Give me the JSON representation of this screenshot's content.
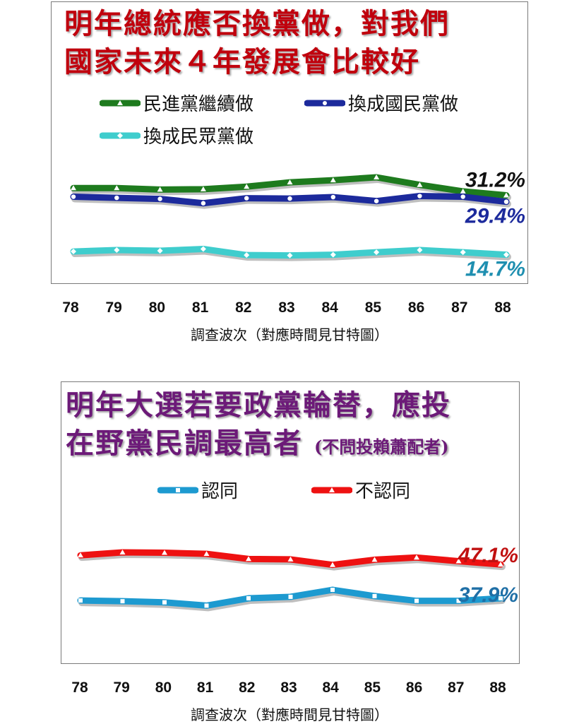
{
  "chart_data": [
    {
      "type": "line",
      "title_line1": "明年總統應否換黨做，對我們",
      "title_line2": "國家未來４年發展會比較好",
      "categories": [
        "78",
        "79",
        "80",
        "81",
        "82",
        "83",
        "84",
        "85",
        "86",
        "87",
        "88"
      ],
      "xlabel": "調查波次（對應時間見甘特圖）",
      "series": [
        {
          "name": "民進黨繼續做",
          "color": "#1e7b1e",
          "marker": "triangle",
          "values": [
            33.2,
            33.2,
            32.8,
            32.9,
            33.6,
            34.8,
            35.4,
            36.2,
            34.1,
            32.3,
            31.2
          ],
          "end_label": "31.2%",
          "end_label_color": "#111111"
        },
        {
          "name": "換成國民黨做",
          "color": "#1c2a9c",
          "marker": "circle",
          "values": [
            30.8,
            30.5,
            30.2,
            29.0,
            30.4,
            30.3,
            30.7,
            29.6,
            31.0,
            30.8,
            29.4
          ],
          "end_label": "29.4%",
          "end_label_color": "#1c2a9c"
        },
        {
          "name": "換成民眾黨做",
          "color": "#3fcdcd",
          "marker": "diamond",
          "values": [
            15.6,
            16.0,
            15.8,
            16.3,
            14.6,
            14.5,
            14.7,
            15.4,
            16.0,
            15.4,
            14.7
          ],
          "end_label": "14.7%",
          "end_label_color": "#1f8fb0"
        }
      ]
    },
    {
      "type": "line",
      "title_line1": "明年大選若要政黨輪替，應投",
      "title_line2": "在野黨民調最高者",
      "title_note": "(不問投賴蕭配者)",
      "categories": [
        "78",
        "79",
        "80",
        "81",
        "82",
        "83",
        "84",
        "85",
        "86",
        "87",
        "88"
      ],
      "xlabel": "調查波次（對應時間見甘特圖）",
      "series": [
        {
          "name": "認同",
          "color": "#1d9ad0",
          "marker": "square",
          "values": [
            37.3,
            37.1,
            36.8,
            35.9,
            37.9,
            38.3,
            40.2,
            38.5,
            37.2,
            37.2,
            37.9
          ],
          "end_label": "37.9%",
          "end_label_color": "#1f6fa6"
        },
        {
          "name": "不認同",
          "color": "#ee1111",
          "marker": "triangle",
          "values": [
            49.6,
            50.4,
            50.3,
            50.0,
            48.6,
            48.5,
            47.0,
            48.4,
            49.0,
            48.0,
            47.1
          ],
          "end_label": "47.1%",
          "end_label_color": "#c01010"
        }
      ]
    }
  ]
}
